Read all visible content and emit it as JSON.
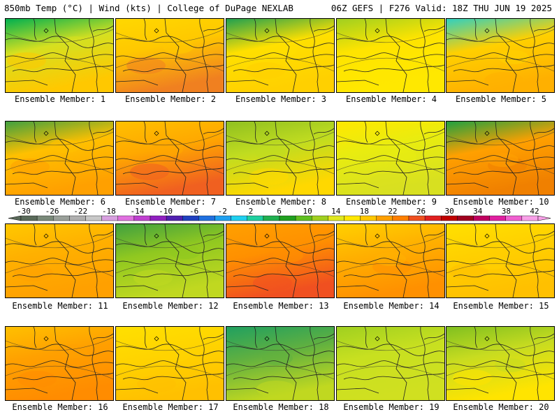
{
  "header": {
    "left": "850mb Temp (°C) | Wind (kts) | College of DuPage NEXLAB",
    "right": "06Z GEFS | F276 Valid: 18Z THU JUN 19 2025"
  },
  "caption_prefix": "Ensemble Member:",
  "members": [
    {
      "label": "Ensemble Member: 1",
      "base": "#d6e020",
      "top": "#00b050",
      "bottom": "#ffc800"
    },
    {
      "label": "Ensemble Member: 2",
      "base": "#ffc800",
      "top": "#ffd800",
      "bottom": "#f08020"
    },
    {
      "label": "Ensemble Member: 3",
      "base": "#ffe000",
      "top": "#20a050",
      "bottom": "#ffd000"
    },
    {
      "label": "Ensemble Member: 4",
      "base": "#ffe400",
      "top": "#a0d020",
      "bottom": "#ffe800"
    },
    {
      "label": "Ensemble Member: 5",
      "base": "#ffd000",
      "top": "#30d0c0",
      "bottom": "#ffb000"
    },
    {
      "label": "Ensemble Member: 6",
      "base": "#ffc000",
      "top": "#40a040",
      "bottom": "#ffa000"
    },
    {
      "label": "Ensemble Member: 7",
      "base": "#ffa800",
      "top": "#ffc000",
      "bottom": "#f06020"
    },
    {
      "label": "Ensemble Member: 8",
      "base": "#c0dc20",
      "top": "#90c020",
      "bottom": "#ffd800"
    },
    {
      "label": "Ensemble Member: 9",
      "base": "#e8ec10",
      "top": "#ffe800",
      "bottom": "#d8e020"
    },
    {
      "label": "Ensemble Member: 10",
      "base": "#ffa000",
      "top": "#20a040",
      "bottom": "#f08000"
    },
    {
      "label": "Ensemble Member: 11",
      "base": "#ffb000",
      "top": "#ffc800",
      "bottom": "#ffa000"
    },
    {
      "label": "Ensemble Member: 12",
      "base": "#90c820",
      "top": "#40a040",
      "bottom": "#c0d820"
    },
    {
      "label": "Ensemble Member: 13",
      "base": "#ff9000",
      "top": "#ffa000",
      "bottom": "#f05020"
    },
    {
      "label": "Ensemble Member: 14",
      "base": "#ffb000",
      "top": "#ffd000",
      "bottom": "#ff9000"
    },
    {
      "label": "Ensemble Member: 15",
      "base": "#ffd000",
      "top": "#ffe000",
      "bottom": "#ffc000"
    },
    {
      "label": "Ensemble Member: 16",
      "base": "#ffa000",
      "top": "#ffc000",
      "bottom": "#ff8c00"
    },
    {
      "label": "Ensemble Member: 17",
      "base": "#ffd400",
      "top": "#ffe000",
      "bottom": "#ffc000"
    },
    {
      "label": "Ensemble Member: 18",
      "base": "#60b040",
      "top": "#20a060",
      "bottom": "#c0d820"
    },
    {
      "label": "Ensemble Member: 19",
      "base": "#c8e020",
      "top": "#a0d020",
      "bottom": "#d0e020"
    },
    {
      "label": "Ensemble Member: 20",
      "base": "#c8dc20",
      "top": "#80c020",
      "bottom": "#ffe400"
    }
  ],
  "colorbar": {
    "labels": [
      "-30",
      "-26",
      "-22",
      "-18",
      "-14",
      "-10",
      "-6",
      "-2",
      "2",
      "6",
      "10",
      "14",
      "18",
      "22",
      "26",
      "30",
      "34",
      "38",
      "42"
    ],
    "colors": [
      "#5a6a5a",
      "#7a8a7a",
      "#9aa09a",
      "#b0b0b0",
      "#c8c8c8",
      "#d8a0e0",
      "#e070e0",
      "#c040d0",
      "#9020c0",
      "#5020b0",
      "#2040c0",
      "#2070e0",
      "#20a0f0",
      "#20d0f0",
      "#20d0a0",
      "#20b050",
      "#20a020",
      "#60c020",
      "#a0d020",
      "#e0e820",
      "#ffe800",
      "#ffc800",
      "#ffa000",
      "#ff8000",
      "#f05020",
      "#e02020",
      "#c00000",
      "#a00020",
      "#c00060",
      "#e020a0",
      "#f060d0",
      "#f8a0e8"
    ]
  }
}
